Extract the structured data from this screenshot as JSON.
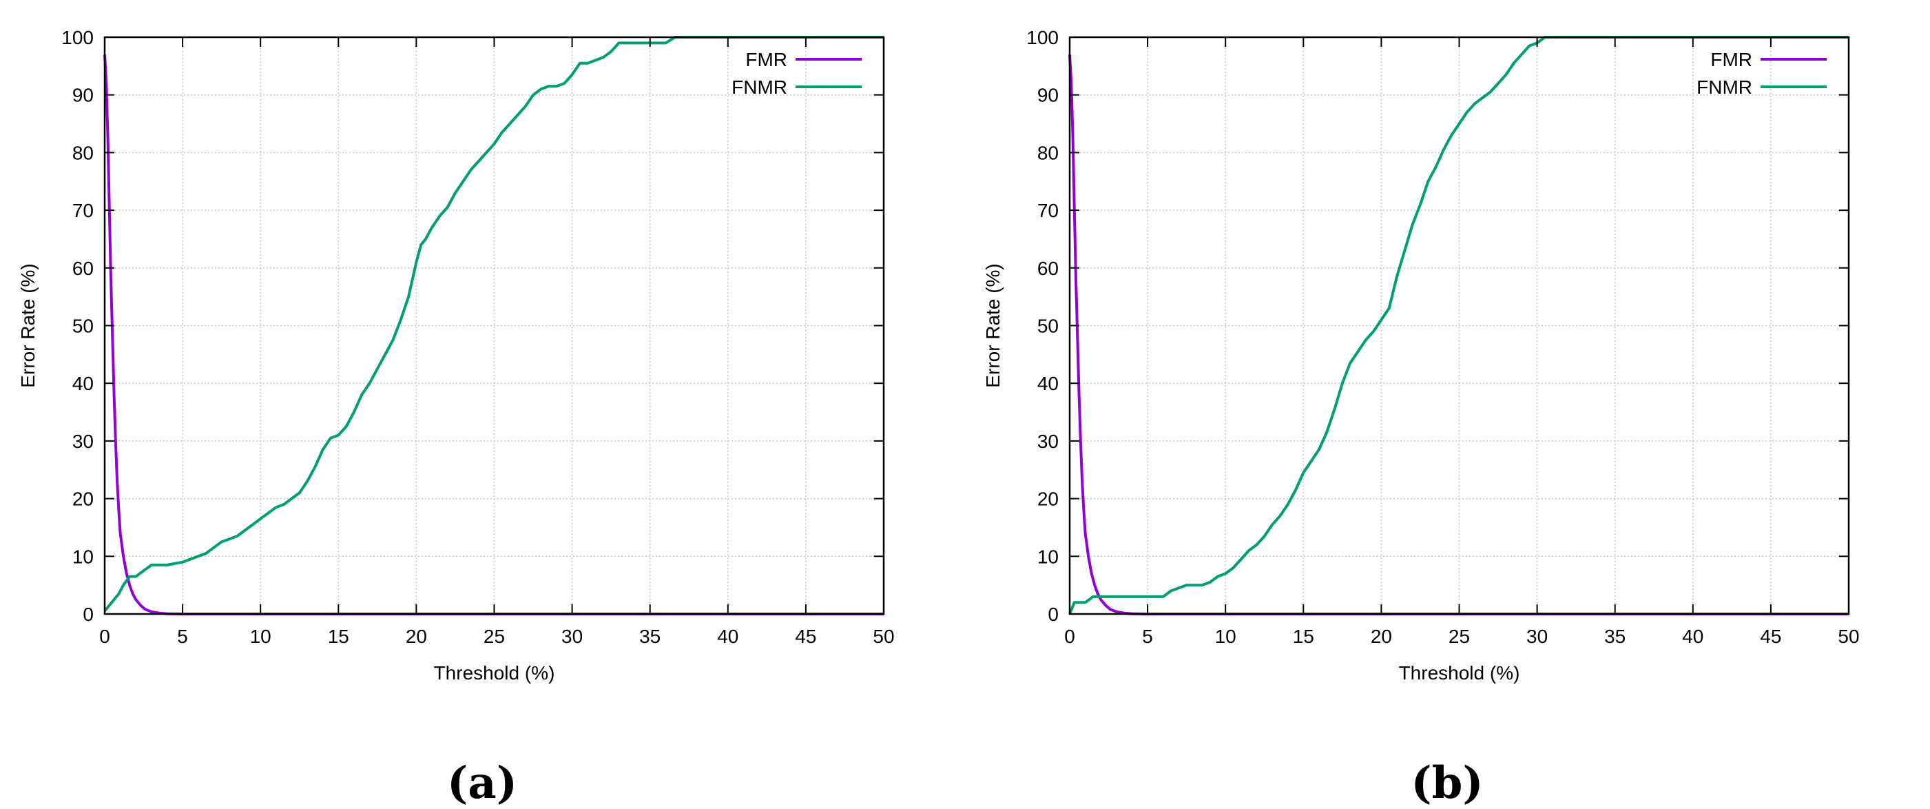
{
  "chart_data": [
    {
      "type": "line",
      "panel_label": "(a)",
      "xlabel": "Threshold (%)",
      "ylabel": "Error Rate (%)",
      "xlim": [
        0,
        50
      ],
      "ylim": [
        0,
        100
      ],
      "xticks": [
        0,
        5,
        10,
        15,
        20,
        25,
        30,
        35,
        40,
        45,
        50
      ],
      "yticks": [
        0,
        10,
        20,
        30,
        40,
        50,
        60,
        70,
        80,
        90,
        100
      ],
      "grid": true,
      "legend": "top-right",
      "series": [
        {
          "name": "FMR",
          "color": "#9400d3",
          "x": [
            0,
            0.1,
            0.2,
            0.3,
            0.4,
            0.5,
            0.6,
            0.7,
            0.8,
            0.9,
            1.0,
            1.2,
            1.4,
            1.6,
            1.8,
            2.0,
            2.3,
            2.6,
            3.0,
            3.5,
            4.0,
            5,
            10,
            20,
            30,
            40,
            50
          ],
          "y": [
            97,
            92,
            83,
            70,
            58,
            48,
            38,
            30,
            23,
            18,
            14,
            10,
            7,
            5,
            3.5,
            2.5,
            1.5,
            0.8,
            0.4,
            0.15,
            0.05,
            0,
            0,
            0,
            0,
            0,
            0
          ]
        },
        {
          "name": "FNMR",
          "color": "#009e73",
          "x": [
            0,
            0.3,
            0.6,
            0.9,
            1.2,
            1.6,
            2.0,
            2.5,
            3.0,
            3.5,
            4.0,
            5.0,
            5.5,
            6.0,
            6.5,
            7.0,
            7.5,
            8.0,
            8.5,
            9.0,
            9.5,
            10.0,
            10.5,
            11.0,
            11.5,
            12.0,
            12.5,
            13.0,
            13.5,
            14.0,
            14.5,
            15.0,
            15.5,
            16.0,
            16.5,
            17.0,
            17.5,
            18.0,
            18.5,
            19.0,
            19.5,
            20.0,
            20.3,
            20.6,
            21.0,
            21.5,
            22.0,
            22.5,
            23.0,
            23.5,
            24.0,
            24.5,
            25.0,
            25.5,
            26.0,
            26.5,
            27.0,
            27.5,
            28.0,
            28.5,
            29.0,
            29.5,
            30.0,
            30.5,
            31.0,
            31.5,
            32.0,
            32.5,
            33.0,
            33.5,
            34.0,
            35.0,
            36.0,
            36.6,
            37.0,
            40,
            45,
            50
          ],
          "y": [
            0.5,
            1.5,
            2.5,
            3.5,
            5.0,
            6.5,
            6.5,
            7.5,
            8.5,
            8.5,
            8.5,
            9.0,
            9.5,
            10.0,
            10.5,
            11.5,
            12.5,
            13.0,
            13.5,
            14.5,
            15.5,
            16.5,
            17.5,
            18.5,
            19.0,
            20.0,
            21.0,
            23.0,
            25.5,
            28.5,
            30.5,
            31.0,
            32.5,
            35.0,
            38.0,
            40.0,
            42.5,
            45.0,
            47.5,
            51.0,
            55.0,
            61.0,
            64.0,
            65.0,
            67.0,
            69.0,
            70.5,
            73.0,
            75.0,
            77.0,
            78.5,
            80.0,
            81.5,
            83.5,
            85.0,
            86.5,
            88.0,
            90.0,
            91.0,
            91.5,
            91.5,
            92.0,
            93.5,
            95.5,
            95.5,
            96.0,
            96.5,
            97.5,
            99.0,
            99.0,
            99.0,
            99.0,
            99.0,
            100,
            100,
            100,
            100,
            100
          ]
        }
      ]
    },
    {
      "type": "line",
      "panel_label": "(b)",
      "xlabel": "Threshold (%)",
      "ylabel": "Error Rate (%)",
      "xlim": [
        0,
        50
      ],
      "ylim": [
        0,
        100
      ],
      "xticks": [
        0,
        5,
        10,
        15,
        20,
        25,
        30,
        35,
        40,
        45,
        50
      ],
      "yticks": [
        0,
        10,
        20,
        30,
        40,
        50,
        60,
        70,
        80,
        90,
        100
      ],
      "grid": true,
      "legend": "top-right",
      "series": [
        {
          "name": "FMR",
          "color": "#9400d3",
          "x": [
            0,
            0.1,
            0.2,
            0.3,
            0.4,
            0.5,
            0.6,
            0.7,
            0.8,
            0.9,
            1.0,
            1.2,
            1.4,
            1.6,
            1.8,
            2.0,
            2.3,
            2.6,
            3.0,
            3.5,
            4.0,
            5,
            10,
            20,
            30,
            40,
            50
          ],
          "y": [
            97,
            92,
            83,
            70,
            58,
            48,
            38,
            30,
            23,
            18,
            14,
            10,
            7,
            5,
            3.5,
            2.5,
            1.5,
            0.8,
            0.4,
            0.15,
            0.05,
            0,
            0,
            0,
            0,
            0,
            0
          ]
        },
        {
          "name": "FNMR",
          "color": "#009e73",
          "x": [
            0,
            0.3,
            1.0,
            1.5,
            2.0,
            3.0,
            4.0,
            5.0,
            6.0,
            6.5,
            7.0,
            7.5,
            8.0,
            8.5,
            9.0,
            9.5,
            10.0,
            10.5,
            11.0,
            11.5,
            12.0,
            12.5,
            13.0,
            13.5,
            14.0,
            14.5,
            15.0,
            15.5,
            16.0,
            16.5,
            17.0,
            17.5,
            18.0,
            18.5,
            19.0,
            19.5,
            20.0,
            20.5,
            21.0,
            21.5,
            22.0,
            22.5,
            23.0,
            23.5,
            24.0,
            24.5,
            25.0,
            25.5,
            26.0,
            26.5,
            27.0,
            27.5,
            28.0,
            28.5,
            29.0,
            29.5,
            30.0,
            30.5,
            31.0,
            35,
            40,
            45,
            50
          ],
          "y": [
            0,
            2.0,
            2.0,
            3.0,
            3.0,
            3.0,
            3.0,
            3.0,
            3.0,
            4.0,
            4.5,
            5.0,
            5.0,
            5.0,
            5.5,
            6.5,
            7.0,
            8.0,
            9.5,
            11.0,
            12.0,
            13.5,
            15.5,
            17.0,
            19.0,
            21.5,
            24.5,
            26.5,
            28.5,
            31.5,
            35.5,
            40.0,
            43.5,
            45.5,
            47.5,
            49.0,
            51.0,
            53.0,
            58.5,
            63.0,
            67.5,
            71.0,
            75.0,
            77.5,
            80.5,
            83.0,
            85.0,
            87.0,
            88.5,
            89.5,
            90.5,
            92.0,
            93.5,
            95.5,
            97.0,
            98.5,
            99.0,
            100,
            100,
            100,
            100,
            100,
            100
          ]
        }
      ]
    }
  ]
}
